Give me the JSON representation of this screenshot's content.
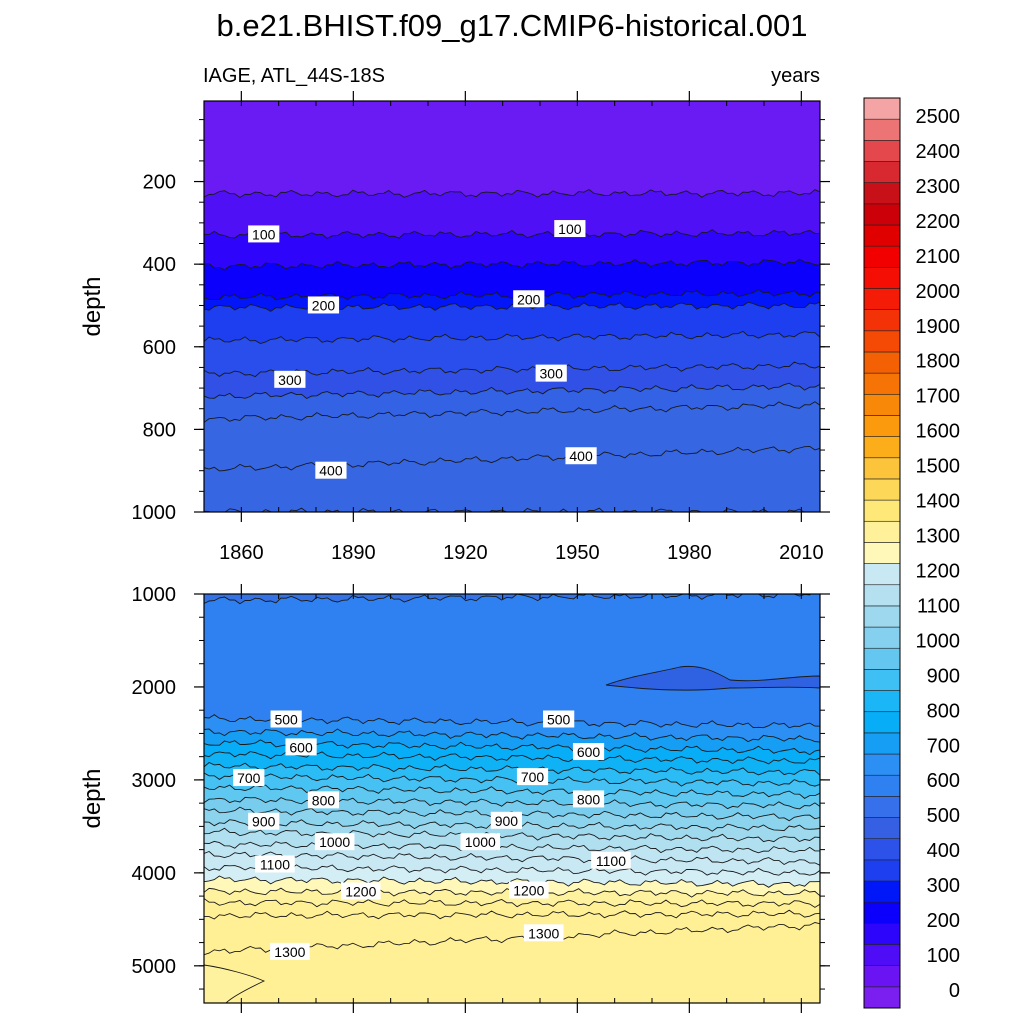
{
  "figure": {
    "title": "b.e21.BHIST.f09_g17.CMIP6-historical.001",
    "left_subtitle": "IAGE, ATL_44S-18S",
    "right_subtitle": "years"
  },
  "colorbar": {
    "labels": [
      "0",
      "100",
      "200",
      "300",
      "400",
      "500",
      "600",
      "700",
      "800",
      "900",
      "1000",
      "1100",
      "1200",
      "1300",
      "1400",
      "1500",
      "1600",
      "1700",
      "1800",
      "1900",
      "2000",
      "2100",
      "2200",
      "2300",
      "2400",
      "2500"
    ],
    "colors": [
      "#7a1ff0",
      "#6a14f4",
      "#4f0cf6",
      "#2d05fb",
      "#0a00fc",
      "#0018f8",
      "#1d3ff0",
      "#2d52ea",
      "#3560e4",
      "#3670ea",
      "#2f80f1",
      "#2b8ff3",
      "#159ef4",
      "#07adf6",
      "#1bb6f6",
      "#3fc0f4",
      "#64c7f0",
      "#84d0ee",
      "#9dd8ee",
      "#b4e0f0",
      "#c8e8f4",
      "#fff8b8",
      "#fff09a",
      "#fee878",
      "#fdd858",
      "#fcc43a",
      "#fbae1a",
      "#fa9a0c",
      "#f88808",
      "#f67406",
      "#f46004",
      "#f44a06",
      "#f43208",
      "#f41c06",
      "#f40e04",
      "#f20000",
      "#e00000",
      "#cc0008",
      "#c81018",
      "#d82830",
      "#e4484c",
      "#ec7474",
      "#f4a4a4"
    ]
  },
  "chart_data": [
    {
      "type": "contour",
      "panel": "upper",
      "xlabel": "",
      "ylabel": "depth",
      "xticks": [
        1860,
        1890,
        1920,
        1950,
        1980,
        2010
      ],
      "yticks": [
        200,
        400,
        600,
        800,
        1000
      ],
      "xlim": [
        1850,
        2015
      ],
      "ylim": [
        1000,
        5
      ],
      "y_reversed": true,
      "contour_levels": [
        25,
        50,
        75,
        100,
        125,
        150,
        175,
        200,
        225,
        250,
        275,
        300,
        325,
        350,
        375,
        400,
        425
      ],
      "level_depths_1850": [
        230,
        330,
        405,
        480,
        505,
        585,
        665,
        720,
        775,
        897,
        1000
      ],
      "level_depths_2015": [
        228,
        325,
        395,
        470,
        500,
        570,
        645,
        695,
        740,
        845,
        1000
      ],
      "labeled_contours": [
        {
          "value": "100",
          "year": 1866,
          "depth": 328
        },
        {
          "value": "100",
          "year": 1948,
          "depth": 315
        },
        {
          "value": "200",
          "year": 1882,
          "depth": 500
        },
        {
          "value": "200",
          "year": 1937,
          "depth": 485
        },
        {
          "value": "300",
          "year": 1873,
          "depth": 680
        },
        {
          "value": "300",
          "year": 1943,
          "depth": 665
        },
        {
          "value": "400",
          "year": 1884,
          "depth": 900
        },
        {
          "value": "400",
          "year": 1951,
          "depth": 865
        }
      ]
    },
    {
      "type": "contour",
      "panel": "lower",
      "xlabel": "",
      "ylabel": "depth",
      "yticks": [
        1000,
        2000,
        3000,
        4000,
        5000
      ],
      "xlim": [
        1850,
        2015
      ],
      "ylim": [
        5400,
        1000
      ],
      "y_reversed": true,
      "contour_levels": [
        450,
        500,
        550,
        600,
        650,
        700,
        750,
        800,
        850,
        900,
        950,
        1000,
        1050,
        1100,
        1150,
        1200,
        1250,
        1300
      ],
      "level_depths_1850": [
        1070,
        2340,
        2480,
        2600,
        2720,
        2850,
        2960,
        3080,
        3210,
        3330,
        3460,
        3560,
        3690,
        3800,
        3940,
        4070,
        4200,
        4320,
        4460,
        4850
      ],
      "level_depths_2015": [
        1000,
        2420,
        2560,
        2690,
        2800,
        2920,
        3040,
        3160,
        3280,
        3400,
        3520,
        3640,
        3760,
        3880,
        4000,
        4120,
        4220,
        4330,
        4440,
        4560
      ],
      "labeled_contours": [
        {
          "value": "500",
          "year": 1872,
          "depth": 2350
        },
        {
          "value": "500",
          "year": 1945,
          "depth": 2350
        },
        {
          "value": "600",
          "year": 1876,
          "depth": 2650
        },
        {
          "value": "600",
          "year": 1953,
          "depth": 2700
        },
        {
          "value": "700",
          "year": 1862,
          "depth": 2980
        },
        {
          "value": "700",
          "year": 1938,
          "depth": 2970
        },
        {
          "value": "800",
          "year": 1882,
          "depth": 3220
        },
        {
          "value": "800",
          "year": 1953,
          "depth": 3210
        },
        {
          "value": "900",
          "year": 1866,
          "depth": 3450
        },
        {
          "value": "900",
          "year": 1931,
          "depth": 3440
        },
        {
          "value": "1000",
          "year": 1885,
          "depth": 3670
        },
        {
          "value": "1000",
          "year": 1924,
          "depth": 3670
        },
        {
          "value": "1100",
          "year": 1869,
          "depth": 3910
        },
        {
          "value": "1100",
          "year": 1959,
          "depth": 3870
        },
        {
          "value": "1200",
          "year": 1892,
          "depth": 4200
        },
        {
          "value": "1200",
          "year": 1937,
          "depth": 4190
        },
        {
          "value": "1300",
          "year": 1873,
          "depth": 4850
        },
        {
          "value": "1300",
          "year": 1941,
          "depth": 4650
        }
      ]
    }
  ]
}
